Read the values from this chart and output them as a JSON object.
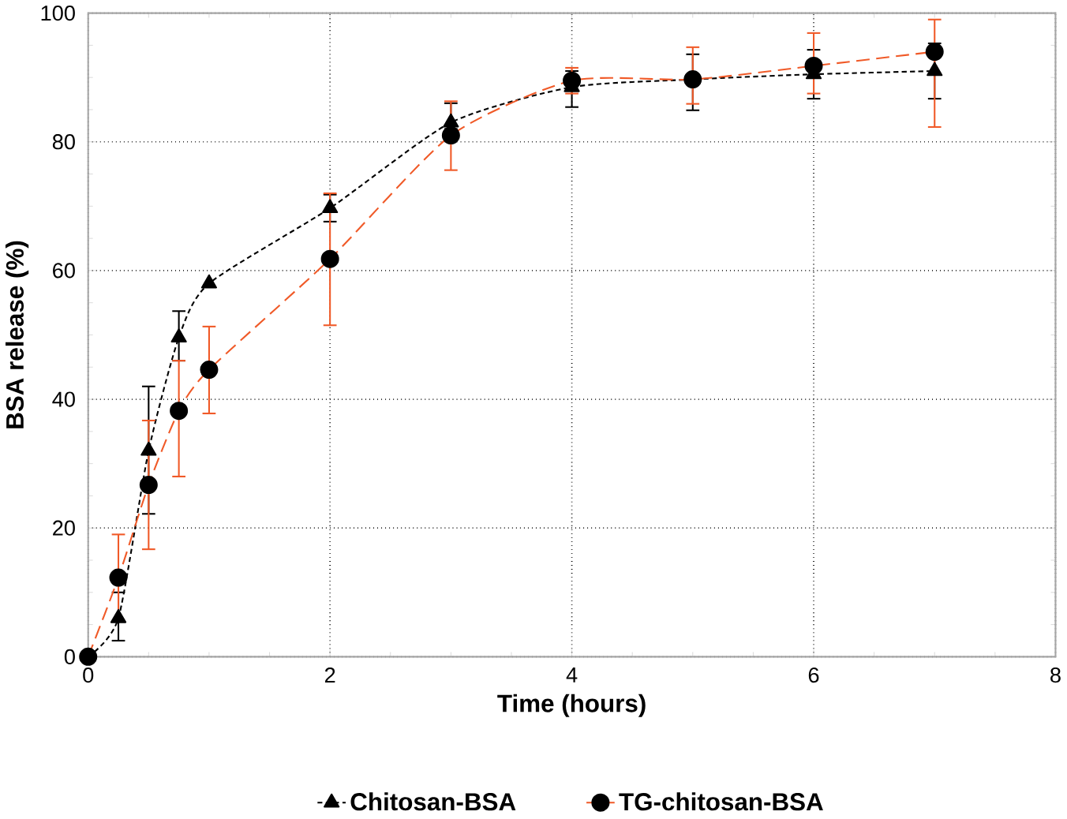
{
  "chart_data": {
    "type": "line",
    "xlabel": "Time (hours)",
    "ylabel": "BSA release (%)",
    "xlim": [
      0,
      8
    ],
    "ylim": [
      0,
      100
    ],
    "xticks": [
      0,
      2,
      4,
      6,
      8
    ],
    "yticks": [
      0,
      20,
      40,
      60,
      80,
      100
    ],
    "grid": true,
    "legend": "bottom",
    "line_style": "dashed",
    "series": [
      {
        "name": "Chitosan-BSA",
        "color": "#000000",
        "marker": "triangle",
        "x": [
          0,
          0.25,
          0.5,
          0.75,
          1,
          2,
          3,
          4,
          5,
          6,
          7
        ],
        "values": [
          0,
          6,
          32,
          49.6,
          58,
          69.7,
          83,
          88.5,
          89.7,
          90.5,
          91
        ],
        "errors": [
          null,
          [
            2.5,
            10
          ],
          [
            22.2,
            42
          ],
          [
            46,
            53.7
          ],
          null,
          [
            67.6,
            71.8
          ],
          [
            82,
            86
          ],
          [
            85.4,
            91
          ],
          [
            84.9,
            93.6
          ],
          [
            86.7,
            94.3
          ],
          [
            86.7,
            95.3
          ]
        ]
      },
      {
        "name": "TG-chitosan-BSA",
        "color": "#f05a28",
        "marker": "circle",
        "x": [
          0,
          0.25,
          0.5,
          0.75,
          1,
          2,
          3,
          4,
          5,
          6,
          7
        ],
        "values": [
          0,
          12.3,
          26.7,
          38.2,
          44.6,
          61.8,
          81,
          89.5,
          89.7,
          91.8,
          94
        ],
        "errors": [
          null,
          [
            5.5,
            19
          ],
          [
            16.7,
            36.7
          ],
          [
            28,
            46
          ],
          [
            37.8,
            51.3
          ],
          [
            51.5,
            72
          ],
          [
            75.6,
            86.3
          ],
          [
            87.5,
            91.5
          ],
          [
            85.9,
            94.7
          ],
          [
            87.5,
            96.9
          ],
          [
            82.3,
            99
          ]
        ]
      }
    ]
  }
}
